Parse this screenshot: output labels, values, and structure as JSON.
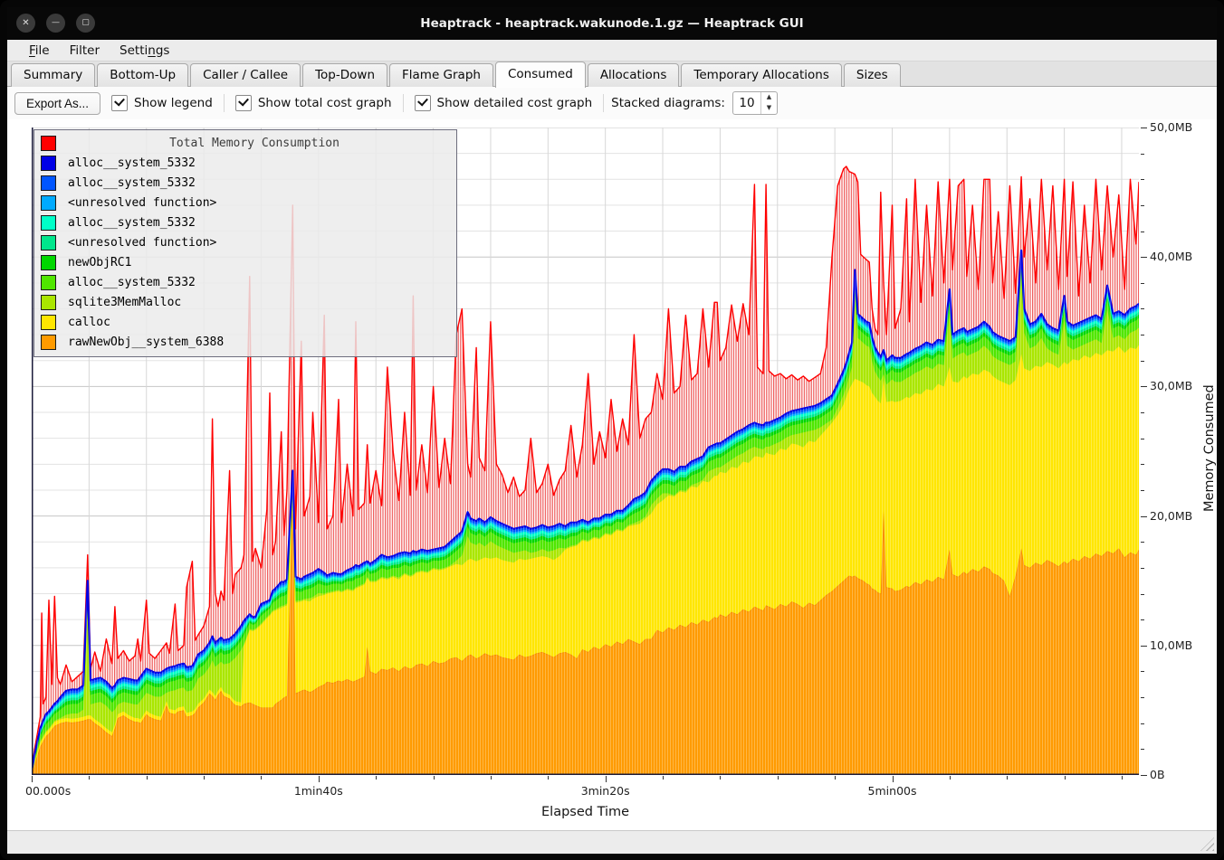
{
  "window": {
    "title": "Heaptrack - heaptrack.wakunode.1.gz — Heaptrack GUI"
  },
  "titlebar_buttons": {
    "close": "✕",
    "minimize": "—",
    "maximize": "▢"
  },
  "menu": {
    "items": [
      {
        "label": "File",
        "underline": 0
      },
      {
        "label": "Filter",
        "underline": -1
      },
      {
        "label": "Settings",
        "underline": 5
      }
    ]
  },
  "tabs": {
    "active": "Consumed",
    "items": [
      "Summary",
      "Bottom-Up",
      "Caller / Callee",
      "Top-Down",
      "Flame Graph",
      "Consumed",
      "Allocations",
      "Temporary Allocations",
      "Sizes"
    ]
  },
  "toolbar": {
    "export_label": "Export As...",
    "checkboxes": [
      {
        "label": "Show legend",
        "checked": true
      },
      {
        "label": "Show total cost graph",
        "checked": true
      },
      {
        "label": "Show detailed cost graph",
        "checked": true
      }
    ],
    "stacked_label": "Stacked diagrams:",
    "stacked_value": "10"
  },
  "status": {
    "text": ""
  },
  "chart_data": {
    "type": "area",
    "stacked": true,
    "xlabel": "Elapsed Time",
    "ylabel": "Memory Consumed",
    "xlim": [
      0,
      386
    ],
    "ylim": [
      0,
      50
    ],
    "x_minor_step_s": 20,
    "y_minor_step_mb": 2,
    "x_ticks": [
      {
        "t": 0,
        "label": "00.000s"
      },
      {
        "t": 100,
        "label": "1min40s"
      },
      {
        "t": 200,
        "label": "3min20s"
      },
      {
        "t": 300,
        "label": "5min00s"
      }
    ],
    "y_ticks": [
      {
        "mb": 0,
        "label": "0B"
      },
      {
        "mb": 10,
        "label": "10,0MB"
      },
      {
        "mb": 20,
        "label": "20,0MB"
      },
      {
        "mb": 30,
        "label": "30,0MB"
      },
      {
        "mb": 40,
        "label": "40,0MB"
      },
      {
        "mb": 50,
        "label": "50,0MB"
      }
    ],
    "grid": true,
    "legend_position": "top-left",
    "legend": {
      "title": {
        "name": "Total Memory Consumption",
        "color": "#ff0000"
      },
      "items": [
        {
          "name": "alloc__system_5332",
          "color": "#0000e6"
        },
        {
          "name": "alloc__system_5332",
          "color": "#0055ff"
        },
        {
          "name": "<unresolved function>",
          "color": "#00aaff"
        },
        {
          "name": "alloc__system_5332",
          "color": "#00ffc8"
        },
        {
          "name": "<unresolved function>",
          "color": "#00e68c"
        },
        {
          "name": "newObjRC1",
          "color": "#00d700"
        },
        {
          "name": "alloc__system_5332",
          "color": "#50e600"
        },
        {
          "name": "sqlite3MemMalloc",
          "color": "#aae600"
        },
        {
          "name": "calloc",
          "color": "#ffe600"
        },
        {
          "name": "rawNewObj__system_6388",
          "color": "#ff9b00"
        }
      ]
    },
    "colors": {
      "total": "#ff0000",
      "orange": "#ff9b00",
      "orange_stroke": "#f07800",
      "yellow": "#ffe600",
      "sqlite": "#aae600",
      "stack_top_line": "#0000e6"
    },
    "derived_bands": {
      "thin_total_mb": 1.85,
      "min_sqlite_gap_mb": 0.1,
      "above_sqlite": [
        {
          "name": "alloc__system_5332",
          "color": "#50e600",
          "frac": 0.4
        },
        {
          "name": "newObjRC1",
          "color": "#00d700",
          "frac": 0.15
        },
        {
          "name": "<unresolved function>",
          "color": "#00e68c",
          "frac": 0.11
        },
        {
          "name": "alloc__system_5332",
          "color": "#00ffc8",
          "frac": 0.12
        },
        {
          "name": "<unresolved function>",
          "color": "#00aaff",
          "frac": 0.08
        },
        {
          "name": "alloc__system_5332",
          "color": "#0055ff",
          "frac": 0.14
        }
      ]
    },
    "series": {
      "t": [
        0,
        1,
        2,
        3,
        3.5,
        4,
        5,
        6,
        7,
        8,
        9,
        10,
        12,
        14,
        16,
        18,
        19.5,
        20.5,
        22,
        24,
        26,
        28,
        29,
        30,
        32,
        34,
        36,
        37,
        38,
        40,
        41,
        43,
        45,
        47,
        48,
        50,
        51,
        53,
        54,
        56,
        57,
        58,
        60,
        62,
        63,
        64,
        65,
        66,
        67,
        69,
        70,
        71,
        73,
        74,
        76,
        77,
        78,
        80,
        82,
        83,
        84,
        85,
        87,
        88,
        89,
        91,
        92,
        94,
        95,
        97,
        98,
        100,
        102,
        103,
        105,
        107,
        108,
        110,
        112,
        113,
        114,
        116,
        117,
        118,
        120,
        122,
        124,
        126,
        128,
        130,
        132,
        133,
        134,
        136,
        138,
        140,
        142,
        144,
        146,
        148,
        150,
        152,
        153,
        155,
        156,
        158,
        160,
        162,
        164,
        166,
        168,
        170,
        172,
        174,
        176,
        178,
        180,
        182,
        184,
        186,
        188,
        190,
        192,
        194,
        196,
        198,
        200,
        202,
        204,
        206,
        208,
        210,
        212,
        214,
        216,
        218,
        220,
        222,
        224,
        226,
        228,
        230,
        232,
        234,
        236,
        238,
        239,
        240,
        242,
        244,
        246,
        248,
        250,
        252,
        253,
        255,
        256,
        257,
        259,
        261,
        263,
        265,
        267,
        269,
        271,
        273,
        275,
        277,
        279,
        281,
        283,
        284,
        285,
        286,
        287,
        288,
        289,
        290,
        291,
        292,
        293,
        294,
        295,
        296,
        297,
        298,
        300,
        301,
        303,
        305,
        306,
        308,
        310,
        312,
        314,
        316,
        318,
        320,
        321,
        323,
        325,
        326,
        328,
        330,
        332,
        334,
        335,
        337,
        339,
        341,
        343,
        345,
        346,
        348,
        350,
        352,
        354,
        356,
        358,
        360,
        361,
        363,
        365,
        367,
        369,
        371,
        373,
        375,
        377,
        379,
        381,
        383,
        385,
        386
      ],
      "total": [
        0.4,
        2,
        3.2,
        4.5,
        12.5,
        5.5,
        6,
        13.5,
        7,
        13.8,
        7.5,
        7,
        8.5,
        7.2,
        7.6,
        8,
        17,
        8.2,
        9.5,
        8,
        10.5,
        8.6,
        13,
        9,
        9.6,
        8.8,
        9.2,
        10.5,
        8.8,
        13.5,
        9.4,
        9,
        9.6,
        10.2,
        9.4,
        13.2,
        9.6,
        10,
        14.5,
        16.5,
        10.4,
        10.8,
        11.5,
        13,
        27.5,
        14,
        13,
        14.2,
        13.5,
        23.5,
        14,
        15.5,
        16,
        17,
        38.5,
        16.5,
        17.5,
        16,
        20.5,
        29.5,
        17,
        18,
        26.5,
        18.5,
        22,
        44,
        19,
        33.5,
        20,
        21.5,
        28,
        19.5,
        35.5,
        19,
        20,
        29,
        19.5,
        24,
        20,
        35,
        20.5,
        21,
        25.5,
        21,
        23.5,
        20.8,
        31.5,
        25,
        21.2,
        28,
        21.6,
        37,
        22,
        25.5,
        21.8,
        30,
        22.2,
        26,
        22.5,
        34,
        36,
        24,
        23,
        33,
        24.5,
        23.5,
        35,
        24,
        23.2,
        21.8,
        23,
        21.5,
        22,
        26,
        21.8,
        22.5,
        24,
        21.6,
        22.8,
        23.5,
        27,
        23,
        25.5,
        31,
        24,
        26.5,
        24.5,
        29,
        25,
        27.5,
        25.5,
        34,
        26,
        27.5,
        28,
        31,
        29,
        36,
        29.5,
        30,
        35.5,
        30.5,
        31,
        36,
        31.5,
        36.5,
        36.5,
        32,
        33,
        36.3,
        33.5,
        36.4,
        34,
        45.6,
        31.5,
        31,
        45.6,
        31.2,
        30.8,
        31,
        30.6,
        30.9,
        30.5,
        30.8,
        30.4,
        30.7,
        31,
        33,
        40,
        45.5,
        46.8,
        47,
        46.6,
        46.5,
        46.4,
        45.8,
        40.2,
        40,
        39.8,
        39.6,
        36,
        34.5,
        34,
        45,
        38,
        34,
        44,
        34.5,
        36,
        44.5,
        35,
        46,
        36.5,
        44,
        37,
        45.8,
        38,
        46,
        39,
        45.5,
        46,
        38.5,
        44,
        37.5,
        46,
        46,
        38,
        43.5,
        36.8,
        45.5,
        37.2,
        46.2,
        40,
        44.5,
        38,
        46,
        39,
        45.5,
        37.5,
        46,
        38.5,
        45.8,
        37,
        44,
        38,
        46,
        39,
        45.5,
        40,
        44.8,
        37.5,
        46,
        41,
        45.8
      ],
      "stack_top": [
        0.3,
        1.6,
        2.6,
        3.6,
        3.9,
        4.2,
        4.7,
        4.9,
        5.2,
        5.5,
        5.7,
        6,
        6.5,
        6.6,
        6.6,
        6.9,
        15,
        7.3,
        7.4,
        7.5,
        7.2,
        6.7,
        6.9,
        7.3,
        7.5,
        7.4,
        7.3,
        7.3,
        7.6,
        8.2,
        8.1,
        7.9,
        7.9,
        8.2,
        8.3,
        8.4,
        8.5,
        8.6,
        8.3,
        8.4,
        8.8,
        9.3,
        9.6,
        10.2,
        10.7,
        10.2,
        10.4,
        10.6,
        10.4,
        10.5,
        10.7,
        10.9,
        11.5,
        11.9,
        12.4,
        12.2,
        12.2,
        13.2,
        13.4,
        13.5,
        14.2,
        14.4,
        14.9,
        14.9,
        15.1,
        23.5,
        15.3,
        15.1,
        15.3,
        15.5,
        15.6,
        15.9,
        15.6,
        15.4,
        15.6,
        15.5,
        15.5,
        15.8,
        16,
        16.2,
        16.1,
        16.4,
        16.5,
        16.3,
        16.6,
        17,
        16.8,
        16.9,
        17.1,
        17.2,
        17.1,
        17.3,
        17.2,
        17.4,
        17.3,
        17.4,
        17.5,
        17.6,
        18,
        18.4,
        18.8,
        20.3,
        19.8,
        19.6,
        19.8,
        19.5,
        19.9,
        19.6,
        19.4,
        19.2,
        19,
        19.1,
        19.2,
        19,
        19.1,
        19.3,
        19.1,
        19.2,
        19.4,
        19.2,
        19.5,
        19.5,
        19.7,
        19.5,
        19.8,
        19.8,
        20.1,
        20.1,
        20.4,
        20.4,
        20.8,
        21.3,
        21.5,
        21.8,
        22.7,
        23.2,
        23.6,
        23.6,
        23.4,
        23.8,
        23.8,
        24.2,
        24.4,
        24.6,
        25.3,
        25.5,
        25.6,
        25.6,
        25.9,
        26.2,
        26.5,
        26.7,
        27,
        27.2,
        27.1,
        27,
        27.2,
        27.2,
        27.4,
        27.6,
        27.9,
        28.1,
        28.2,
        28.3,
        28.4,
        28.5,
        28.7,
        29,
        29.3,
        30.2,
        31.2,
        31.8,
        32.6,
        33.4,
        39,
        35.6,
        35.4,
        35.2,
        35,
        34.9,
        33.8,
        33,
        32.6,
        32.3,
        32.8,
        32,
        32.4,
        32.2,
        32.2,
        32.5,
        32.6,
        32.9,
        33.1,
        33.4,
        33.2,
        33.6,
        33.5,
        37.5,
        34,
        34.3,
        34.5,
        34.2,
        34.4,
        34.6,
        35,
        34.6,
        34.2,
        33.9,
        33.7,
        33.5,
        33.8,
        40.5,
        36,
        34.8,
        35,
        35.6,
        34.8,
        34.5,
        34.3,
        37,
        35,
        34.7,
        34.9,
        35.1,
        35.3,
        35.5,
        35.2,
        37.8,
        35.6,
        35.8,
        35.5,
        36,
        36.2,
        36.4
      ],
      "orange_top": [
        0.05,
        0.8,
        1.5,
        2.2,
        2.4,
        2.6,
        3,
        3.2,
        3.5,
        3.8,
        3.9,
        4,
        4.1,
        4.05,
        4.1,
        4.2,
        4.3,
        4.3,
        4,
        3.7,
        3.3,
        3,
        3.6,
        4.4,
        4.6,
        4.3,
        4.1,
        4.1,
        4,
        4.7,
        4.5,
        4.3,
        4.2,
        5.4,
        4.8,
        4.7,
        4.9,
        5,
        4.5,
        4.6,
        4.8,
        5.2,
        5.6,
        6.3,
        6.1,
        5.8,
        6.2,
        6.5,
        6.1,
        5.9,
        5.6,
        5.4,
        5.3,
        5.5,
        5.6,
        5.5,
        5.4,
        5.2,
        5.2,
        5.2,
        5.2,
        5.5,
        5.8,
        6,
        6.1,
        21.6,
        6.3,
        6.5,
        6.6,
        6.4,
        6.5,
        6.8,
        7,
        7.2,
        7.1,
        7.3,
        7.2,
        7.4,
        7.2,
        7.3,
        7.4,
        7.6,
        9.9,
        8,
        7.8,
        8.2,
        8.1,
        8.3,
        8,
        8.4,
        8.2,
        8.3,
        8.5,
        8.6,
        8.4,
        8.8,
        8.6,
        8.7,
        9,
        9.1,
        8.8,
        9.2,
        9.3,
        9,
        9.1,
        9.4,
        9.2,
        9.3,
        9.1,
        9,
        8.9,
        9.3,
        9.1,
        9.2,
        9.4,
        9.5,
        9.3,
        9.1,
        9.4,
        9.5,
        9.3,
        9,
        9.7,
        9.5,
        9.9,
        9.7,
        10.1,
        9.9,
        10.3,
        10.1,
        10.5,
        10.3,
        10.1,
        10.5,
        10.5,
        11.2,
        11,
        11.4,
        11.2,
        11.6,
        11.4,
        11.8,
        11.6,
        12,
        11.8,
        12.2,
        12.1,
        12.4,
        12.2,
        12.6,
        12.4,
        12.8,
        12.6,
        13,
        12.9,
        12.7,
        13.1,
        13,
        12.8,
        13.2,
        13,
        13.4,
        13.2,
        12.9,
        13.3,
        13.1,
        13.5,
        13.9,
        14.2,
        14.6,
        15,
        15.2,
        15.4,
        15.3,
        15.4,
        15.2,
        15.1,
        15,
        14.8,
        14.7,
        14.4,
        14.3,
        14.1,
        14,
        20.4,
        14.5,
        14.4,
        14.2,
        14.3,
        14.6,
        14.5,
        14.9,
        14.7,
        15.1,
        14.9,
        15.3,
        15.1,
        17.4,
        15.5,
        15.3,
        15.7,
        15.5,
        15.9,
        15.7,
        16.1,
        15.9,
        15.6,
        15.4,
        15,
        13.8,
        15.4,
        17.5,
        16.2,
        16,
        16.4,
        16.2,
        16.6,
        16.4,
        16.1,
        16.5,
        16.3,
        16.7,
        16.5,
        16.9,
        16.7,
        17.1,
        16.9,
        17.3,
        17.1,
        17.5,
        16.8,
        17.2,
        17,
        17.4
      ],
      "yellow_top": [
        0.1,
        1,
        1.8,
        2.5,
        2.7,
        2.9,
        3.3,
        3.5,
        3.8,
        4.1,
        4.2,
        4.3,
        4.4,
        4.35,
        4.4,
        4.5,
        4.6,
        4.6,
        4.3,
        4,
        3.6,
        3.3,
        3.9,
        4.7,
        4.9,
        4.6,
        4.4,
        4.4,
        4.3,
        5,
        4.8,
        4.6,
        4.5,
        5.7,
        5.1,
        5,
        5.2,
        5.3,
        4.8,
        4.9,
        5.1,
        5.5,
        5.9,
        6.6,
        6.4,
        6.1,
        6.5,
        6.8,
        6.4,
        6.2,
        5.9,
        5.7,
        5.6,
        10,
        11.2,
        11.1,
        11.2,
        11.6,
        12.1,
        12.3,
        12.6,
        12.7,
        12.9,
        13,
        13.1,
        21.8,
        13.3,
        13.4,
        13.5,
        13.4,
        13.6,
        13.8,
        13.9,
        14,
        14.1,
        14.2,
        14.1,
        14.3,
        14.2,
        14.4,
        14.5,
        14.7,
        15.2,
        14.9,
        14.9,
        15.2,
        15.1,
        15.3,
        15.1,
        15.5,
        15.3,
        15.4,
        15.6,
        15.7,
        15.6,
        15.9,
        15.8,
        15.9,
        16.1,
        16.3,
        16.2,
        16.6,
        16.7,
        16.5,
        16.6,
        16.8,
        16.7,
        16.8,
        16.6,
        16.5,
        16.4,
        16.7,
        16.6,
        16.7,
        16.8,
        16.9,
        16.8,
        16.6,
        16.9,
        17.4,
        17.6,
        17.7,
        18.1,
        18,
        18.3,
        18.2,
        18.6,
        18.5,
        18.9,
        18.8,
        19.2,
        19.3,
        19.4,
        19.8,
        20.2,
        20.9,
        21.2,
        21.6,
        21.5,
        21.9,
        21.8,
        22.3,
        22.2,
        22.7,
        22.6,
        23.1,
        23.1,
        23.4,
        23.3,
        23.8,
        23.7,
        24.2,
        24.1,
        24.6,
        24.6,
        24.5,
        24.9,
        24.8,
        24.7,
        25.2,
        25.1,
        25.6,
        25.5,
        25.3,
        25.8,
        25.7,
        26.2,
        26.7,
        27.2,
        27.8,
        28.6,
        29.2,
        29.8,
        30.2,
        30.6,
        30.5,
        30.4,
        30.3,
        30.1,
        30,
        29.5,
        29.2,
        28.9,
        28.7,
        30.5,
        28.8,
        28.9,
        28.8,
        28.9,
        29.2,
        29.1,
        29.5,
        29.4,
        29.8,
        29.7,
        30.2,
        30,
        31.5,
        30.4,
        30.3,
        30.8,
        30.6,
        31,
        30.9,
        31.3,
        31.1,
        30.8,
        30.5,
        30.3,
        30.1,
        30.5,
        32.5,
        31.4,
        31.2,
        31.6,
        31.5,
        31.9,
        31.7,
        31.4,
        31.9,
        31.7,
        32.1,
        32,
        32.4,
        32.2,
        32.6,
        32.4,
        32.8,
        32.7,
        33.1,
        32.6,
        33,
        32.9,
        33.2
      ]
    }
  }
}
